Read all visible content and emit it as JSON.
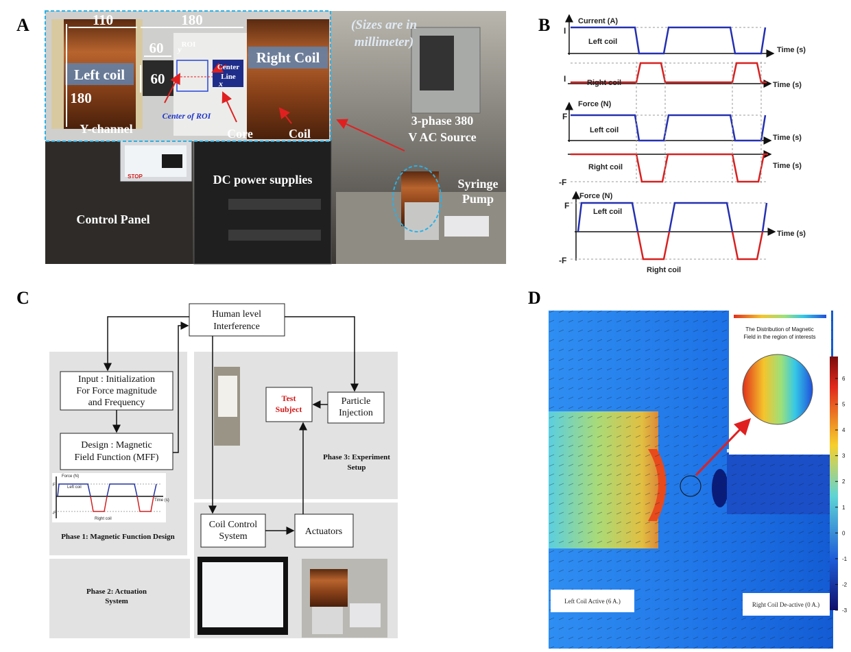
{
  "panels": {
    "a": "A",
    "b": "B",
    "c": "C",
    "d": "D"
  },
  "panel_a": {
    "dim_left_width": "110",
    "dim_gap_width": "180",
    "left_coil": "Left coil",
    "right_coil": "Right Coil",
    "dim_core_width": "60",
    "dim_core_height": "60",
    "dim_coil_height": "180",
    "roi": "ROI",
    "axis_y": "y",
    "axis_x": "x",
    "center_line": [
      "Center",
      "Line"
    ],
    "y_channel": "Y-channel",
    "center_of_roi": "Center of ROI",
    "core": "Core",
    "coil": "Coil",
    "size_note": [
      "(Sizes are in",
      "millimeter)"
    ],
    "ac_source": [
      "3-phase 380",
      "V AC Source"
    ],
    "dc_supplies": "DC power supplies",
    "syringe_pump": [
      "Syringe",
      "Pump"
    ],
    "control_panel": "Control Panel",
    "stop": "STOP"
  },
  "panel_b": {
    "current_left": {
      "y_label": "Current (A)",
      "level": "I",
      "coil": "Left coil",
      "x_label": "Time (s)"
    },
    "current_right": {
      "level": "I",
      "coil": "Right coil",
      "x_label": "Time (s)"
    },
    "force_left": {
      "y_label": "Force (N)",
      "level": "F",
      "coil": "Left coil",
      "x_label": "Time (s)"
    },
    "force_right": {
      "level": "-F",
      "coil": "Right coil",
      "x_label": "Time (s)"
    },
    "force_total": {
      "y_label": "Force (N)",
      "level_high": "F",
      "level_low": "-F",
      "coil_high": "Left coil",
      "coil_low": "Right coil",
      "x_label": "Time (s)"
    }
  },
  "panel_c": {
    "nodes": {
      "human": [
        "Human level",
        "Interference"
      ],
      "input": [
        "Input : Initialization",
        "For Force magnitude",
        "and Frequency"
      ],
      "design": [
        "Design : Magnetic",
        "Field Function (MFF)"
      ],
      "test_subject": [
        "Test",
        "Subject"
      ],
      "particle": [
        "Particle",
        "Injection"
      ],
      "coil_control": [
        "Coil Control",
        "System"
      ],
      "actuators": "Actuators"
    },
    "phases": {
      "phase1": "Phase 1: Magnetic Function Design",
      "phase2": [
        "Phase 2: Actuation",
        "System"
      ],
      "phase3": [
        "Phase 3: Experiment",
        "Setup"
      ]
    },
    "mini_plot": {
      "y_label": "Force (N)",
      "level_high": "F",
      "coil_high": "Left coil",
      "x_label": "Time (s)",
      "level_low": "-F",
      "coil_low": "Right coil"
    }
  },
  "panel_d": {
    "legend_title": [
      "The Distribution of Magnetic",
      "Field in the region of interests"
    ],
    "left_label": "Left Coil Active (6 A.)",
    "right_label": "Right Coil De-active (0 A.)",
    "colorbar_ticks": [
      6,
      5,
      4,
      3,
      2,
      1,
      0,
      -1,
      -2,
      -3
    ]
  }
}
